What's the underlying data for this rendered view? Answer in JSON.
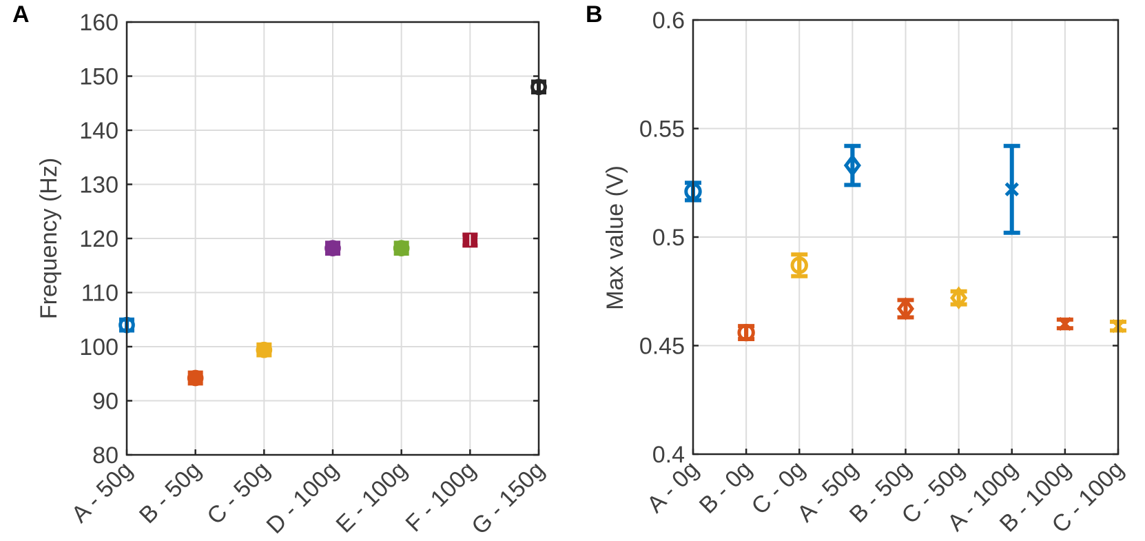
{
  "chart_data": [
    {
      "panel_label": "A",
      "type": "scatter",
      "error_bars": true,
      "xlabel": "",
      "ylabel": "Frequency (Hz)",
      "ylim": [
        80,
        160
      ],
      "yticks": [
        "80",
        "90",
        "100",
        "110",
        "120",
        "130",
        "140",
        "150",
        "160"
      ],
      "grid": true,
      "categories": [
        "A - 50g",
        "B - 50g",
        "C - 50g",
        "D - 100g",
        "E - 100g",
        "F - 100g",
        "G - 150g"
      ],
      "points": [
        {
          "category": "A - 50g",
          "value": 104.0,
          "error": 1.0,
          "marker": "circle",
          "color": "#0072BD"
        },
        {
          "category": "B - 50g",
          "value": 94.2,
          "error": 1.0,
          "marker": "circle-filled",
          "color": "#D95319"
        },
        {
          "category": "C - 50g",
          "value": 99.4,
          "error": 1.0,
          "marker": "circle-filled",
          "color": "#EDB120"
        },
        {
          "category": "D - 100g",
          "value": 118.2,
          "error": 1.0,
          "marker": "circle-filled",
          "color": "#7E2F8E"
        },
        {
          "category": "E - 100g",
          "value": 118.2,
          "error": 1.0,
          "marker": "circle-filled",
          "color": "#77AC30"
        },
        {
          "category": "F - 100g",
          "value": 119.7,
          "error": 1.0,
          "marker": "square",
          "color": "#A2142F"
        },
        {
          "category": "G - 150g",
          "value": 148.0,
          "error": 1.0,
          "marker": "circle",
          "color": "#262626"
        }
      ]
    },
    {
      "panel_label": "B",
      "type": "scatter",
      "error_bars": true,
      "xlabel": "",
      "ylabel": "Max value (V)",
      "ylim": [
        0.4,
        0.6
      ],
      "yticks": [
        "0.4",
        "0.45",
        "0.5",
        "0.55",
        "0.6"
      ],
      "grid": true,
      "categories": [
        "A - 0g",
        "B - 0g",
        "C - 0g",
        "A - 50g",
        "B - 50g",
        "C - 50g",
        "A - 100g",
        "B - 100g",
        "C - 100g"
      ],
      "points": [
        {
          "category": "A - 0g",
          "value": 0.521,
          "error": 0.004,
          "marker": "circle",
          "color": "#0072BD"
        },
        {
          "category": "B - 0g",
          "value": 0.456,
          "error": 0.003,
          "marker": "circle",
          "color": "#D95319"
        },
        {
          "category": "C - 0g",
          "value": 0.487,
          "error": 0.005,
          "marker": "circle",
          "color": "#EDB120"
        },
        {
          "category": "A - 50g",
          "value": 0.533,
          "error": 0.009,
          "marker": "diamond",
          "color": "#0072BD"
        },
        {
          "category": "B - 50g",
          "value": 0.467,
          "error": 0.004,
          "marker": "diamond",
          "color": "#D95319"
        },
        {
          "category": "C - 50g",
          "value": 0.472,
          "error": 0.003,
          "marker": "diamond",
          "color": "#EDB120"
        },
        {
          "category": "A - 100g",
          "value": 0.522,
          "error": 0.02,
          "marker": "cross",
          "color": "#0072BD"
        },
        {
          "category": "B - 100g",
          "value": 0.46,
          "error": 0.002,
          "marker": "cross",
          "color": "#D95319"
        },
        {
          "category": "C - 100g",
          "value": 0.459,
          "error": 0.002,
          "marker": "cross",
          "color": "#EDB120"
        }
      ]
    }
  ]
}
